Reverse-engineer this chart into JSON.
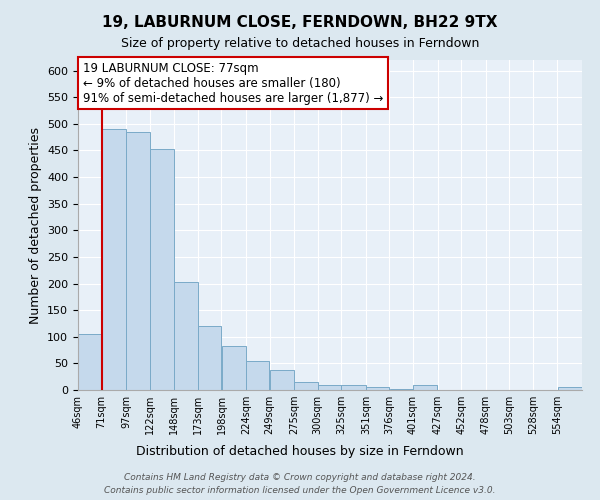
{
  "title": "19, LABURNUM CLOSE, FERNDOWN, BH22 9TX",
  "subtitle": "Size of property relative to detached houses in Ferndown",
  "xlabel": "Distribution of detached houses by size in Ferndown",
  "ylabel": "Number of detached properties",
  "bin_labels": [
    "46sqm",
    "71sqm",
    "97sqm",
    "122sqm",
    "148sqm",
    "173sqm",
    "198sqm",
    "224sqm",
    "249sqm",
    "275sqm",
    "300sqm",
    "325sqm",
    "351sqm",
    "376sqm",
    "401sqm",
    "427sqm",
    "452sqm",
    "478sqm",
    "503sqm",
    "528sqm",
    "554sqm"
  ],
  "bar_heights": [
    105,
    490,
    485,
    453,
    202,
    121,
    82,
    55,
    38,
    15,
    9,
    10,
    5,
    2,
    10,
    0,
    0,
    0,
    0,
    0,
    5
  ],
  "bar_color": "#c5d9ec",
  "bar_edge_color": "#7aaac8",
  "bin_edges": [
    46,
    71,
    97,
    122,
    148,
    173,
    198,
    224,
    249,
    275,
    300,
    325,
    351,
    376,
    401,
    427,
    452,
    478,
    503,
    528,
    554,
    580
  ],
  "annotation_text": "19 LABURNUM CLOSE: 77sqm\n← 9% of detached houses are smaller (180)\n91% of semi-detached houses are larger (1,877) →",
  "annotation_border_color": "#cc0000",
  "vline_color": "#cc0000",
  "ylim": [
    0,
    620
  ],
  "yticks": [
    0,
    50,
    100,
    150,
    200,
    250,
    300,
    350,
    400,
    450,
    500,
    550,
    600
  ],
  "footer_line1": "Contains HM Land Registry data © Crown copyright and database right 2024.",
  "footer_line2": "Contains public sector information licensed under the Open Government Licence v3.0.",
  "bg_color": "#dce8f0",
  "plot_bg_color": "#e8f0f8"
}
